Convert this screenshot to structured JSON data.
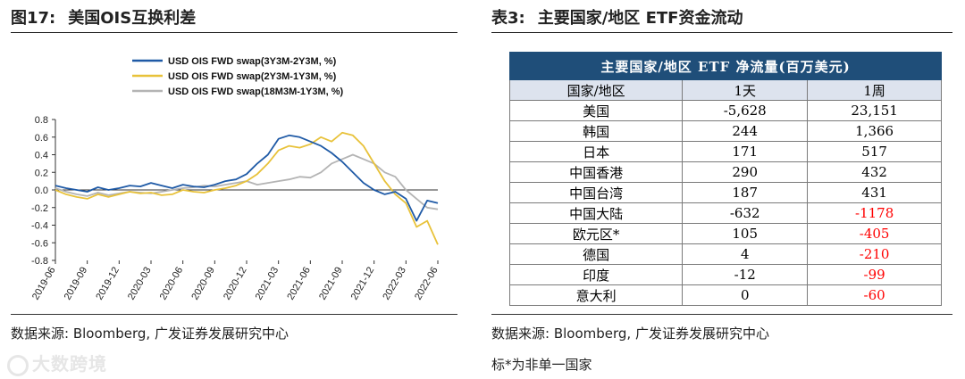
{
  "left": {
    "title_prefix": "图17:",
    "title_text": "美国OIS互换利差",
    "source": "数据来源: Bloomberg, 广发证券发展研究中心"
  },
  "right": {
    "title_prefix": "表3:",
    "title_text": "主要国家/地区 ETF资金流动",
    "source": "数据来源: Bloomberg, 广发证券发展研究中心",
    "note": "标*为非单一国家",
    "table": {
      "header": "主要国家/地区 ETF 净流量(百万美元)",
      "columns": [
        "国家/地区",
        "1天",
        "1周"
      ],
      "rows": [
        {
          "name": "美国",
          "day": "-5,628",
          "week": "23,151",
          "week_neg": false
        },
        {
          "name": "韩国",
          "day": "244",
          "week": "1,366",
          "week_neg": false
        },
        {
          "name": "日本",
          "day": "171",
          "week": "517",
          "week_neg": false
        },
        {
          "name": "中国香港",
          "day": "290",
          "week": "432",
          "week_neg": false
        },
        {
          "name": "中国台湾",
          "day": "187",
          "week": "431",
          "week_neg": false
        },
        {
          "name": "中国大陆",
          "day": "-632",
          "week": "-1178",
          "week_neg": true
        },
        {
          "name": "欧元区*",
          "day": "105",
          "week": "-405",
          "week_neg": true
        },
        {
          "name": "德国",
          "day": "4",
          "week": "-210",
          "week_neg": true
        },
        {
          "name": "印度",
          "day": "-12",
          "week": "-99",
          "week_neg": true
        },
        {
          "name": "意大利",
          "day": "0",
          "week": "-60",
          "week_neg": true
        }
      ]
    }
  },
  "watermark": "大数跨境",
  "colors": {
    "series1": "#1f5aa6",
    "series2": "#e8c23a",
    "series3": "#b4b4b4",
    "table_header": "#1f4e79",
    "negative": "#ff0000"
  },
  "chart_data": {
    "type": "line",
    "title": "美国OIS互换利差",
    "xlabel": "",
    "ylabel": "",
    "ylim": [
      -0.8,
      0.8
    ],
    "yticks": [
      0.8,
      0.6,
      0.4,
      0.2,
      0.0,
      -0.2,
      -0.4,
      -0.6,
      -0.8
    ],
    "ytick_labels": [
      "0.8",
      "0.6",
      "0.4",
      "0.2",
      "0.0",
      "-0.2",
      "-0.4",
      "-0.6",
      "-0.8"
    ],
    "xlim": [
      0,
      36
    ],
    "xtick_positions": [
      0,
      3,
      6,
      9,
      12,
      15,
      18,
      21,
      24,
      27,
      30,
      33,
      36
    ],
    "xtick_labels": [
      "2019-06",
      "2019-09",
      "2019-12",
      "2020-03",
      "2020-06",
      "2020-09",
      "2020-12",
      "2021-03",
      "2021-06",
      "2021-09",
      "2021-12",
      "2022-03",
      "2022-06"
    ],
    "legend_position": "top",
    "series": [
      {
        "name": "USD OIS FWD swap(3Y3M-2Y3M, %)",
        "x": [
          0,
          1,
          2,
          3,
          4,
          5,
          6,
          7,
          8,
          9,
          10,
          11,
          12,
          13,
          14,
          15,
          16,
          17,
          18,
          19,
          20,
          21,
          22,
          23,
          24,
          25,
          26,
          27,
          28,
          29,
          30,
          31,
          32,
          33,
          34,
          35,
          36
        ],
        "values": [
          0.05,
          0.02,
          0.0,
          -0.02,
          0.03,
          0.0,
          0.02,
          0.05,
          0.04,
          0.08,
          0.05,
          0.02,
          0.06,
          0.04,
          0.03,
          0.06,
          0.1,
          0.12,
          0.18,
          0.3,
          0.4,
          0.58,
          0.62,
          0.6,
          0.55,
          0.5,
          0.42,
          0.32,
          0.2,
          0.08,
          0.0,
          -0.05,
          -0.02,
          -0.1,
          -0.35,
          -0.12,
          -0.15
        ]
      },
      {
        "name": "USD OIS FWD swap(2Y3M-1Y3M, %)",
        "x": [
          0,
          1,
          2,
          3,
          4,
          5,
          6,
          7,
          8,
          9,
          10,
          11,
          12,
          13,
          14,
          15,
          16,
          17,
          18,
          19,
          20,
          21,
          22,
          23,
          24,
          25,
          26,
          27,
          28,
          29,
          30,
          31,
          32,
          33,
          34,
          35,
          36
        ],
        "values": [
          0.0,
          -0.05,
          -0.08,
          -0.1,
          -0.05,
          -0.08,
          -0.05,
          -0.02,
          -0.04,
          -0.03,
          -0.06,
          -0.05,
          0.0,
          -0.02,
          -0.03,
          0.0,
          0.02,
          0.05,
          0.1,
          0.18,
          0.3,
          0.45,
          0.5,
          0.48,
          0.52,
          0.6,
          0.55,
          0.65,
          0.62,
          0.5,
          0.3,
          0.1,
          -0.05,
          -0.15,
          -0.42,
          -0.35,
          -0.62
        ]
      },
      {
        "name": "USD OIS FWD swap(18M3M-1Y3M, %)",
        "x": [
          0,
          1,
          2,
          3,
          4,
          5,
          6,
          7,
          8,
          9,
          10,
          11,
          12,
          13,
          14,
          15,
          16,
          17,
          18,
          19,
          20,
          21,
          22,
          23,
          24,
          25,
          26,
          27,
          28,
          29,
          30,
          31,
          32,
          33,
          34,
          35,
          36
        ],
        "values": [
          0.02,
          -0.02,
          -0.05,
          -0.07,
          -0.03,
          -0.06,
          -0.04,
          -0.02,
          -0.03,
          -0.04,
          -0.02,
          0.0,
          0.02,
          0.03,
          0.05,
          0.04,
          0.06,
          0.08,
          0.1,
          0.06,
          0.08,
          0.1,
          0.12,
          0.15,
          0.14,
          0.2,
          0.3,
          0.35,
          0.4,
          0.35,
          0.3,
          0.2,
          0.15,
          0.0,
          -0.1,
          -0.2,
          -0.22
        ]
      }
    ]
  }
}
